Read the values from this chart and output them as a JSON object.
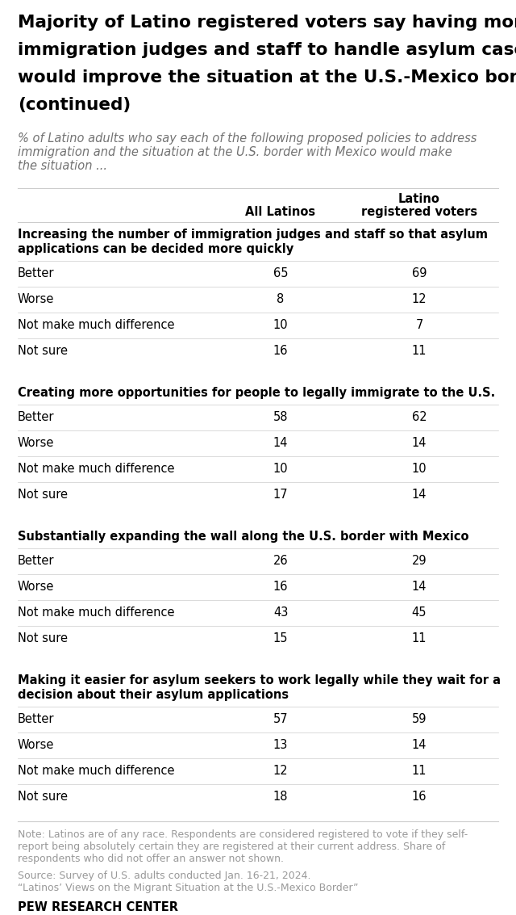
{
  "title_lines": [
    "Majority of Latino registered voters say having more",
    "immigration judges and staff to handle asylum cases",
    "would improve the situation at the U.S.-Mexico border",
    "(continued)"
  ],
  "subtitle_lines": [
    "% of Latino adults who say each of the following proposed policies to address",
    "immigration and the situation at the U.S. border with Mexico would make",
    "the situation ..."
  ],
  "col1_header": "All Latinos",
  "col2_header_line1": "Latino",
  "col2_header_line2": "registered voters",
  "sections": [
    {
      "policy_lines": [
        "Increasing the number of immigration judges and staff so that asylum",
        "applications can be decided more quickly"
      ],
      "rows": [
        {
          "label": "Better",
          "col1": "65",
          "col2": "69"
        },
        {
          "label": "Worse",
          "col1": "8",
          "col2": "12"
        },
        {
          "label": "Not make much difference",
          "col1": "10",
          "col2": "7"
        },
        {
          "label": "Not sure",
          "col1": "16",
          "col2": "11"
        }
      ]
    },
    {
      "policy_lines": [
        "Creating more opportunities for people to legally immigrate to the U.S."
      ],
      "rows": [
        {
          "label": "Better",
          "col1": "58",
          "col2": "62"
        },
        {
          "label": "Worse",
          "col1": "14",
          "col2": "14"
        },
        {
          "label": "Not make much difference",
          "col1": "10",
          "col2": "10"
        },
        {
          "label": "Not sure",
          "col1": "17",
          "col2": "14"
        }
      ]
    },
    {
      "policy_lines": [
        "Substantially expanding the wall along the U.S. border with Mexico"
      ],
      "rows": [
        {
          "label": "Better",
          "col1": "26",
          "col2": "29"
        },
        {
          "label": "Worse",
          "col1": "16",
          "col2": "14"
        },
        {
          "label": "Not make much difference",
          "col1": "43",
          "col2": "45"
        },
        {
          "label": "Not sure",
          "col1": "15",
          "col2": "11"
        }
      ]
    },
    {
      "policy_lines": [
        "Making it easier for asylum seekers to work legally while they wait for a",
        "decision about their asylum applications"
      ],
      "rows": [
        {
          "label": "Better",
          "col1": "57",
          "col2": "59"
        },
        {
          "label": "Worse",
          "col1": "13",
          "col2": "14"
        },
        {
          "label": "Not make much difference",
          "col1": "12",
          "col2": "11"
        },
        {
          "label": "Not sure",
          "col1": "18",
          "col2": "16"
        }
      ]
    }
  ],
  "note_lines": [
    "Note: Latinos are of any race. Respondents are considered registered to vote if they self-",
    "report being absolutely certain they are registered at their current address. Share of",
    "respondents who did not offer an answer not shown."
  ],
  "source": "Source: Survey of U.S. adults conducted Jan. 16-21, 2024.",
  "report": "“Latinos’ Views on the Migrant Situation at the U.S.-Mexico Border”",
  "branding": "PEW RESEARCH CENTER",
  "bg_color": "#ffffff",
  "title_color": "#000000",
  "subtitle_color": "#737373",
  "policy_color": "#000000",
  "row_label_color": "#000000",
  "data_color": "#000000",
  "note_color": "#999999",
  "line_color": "#cccccc"
}
